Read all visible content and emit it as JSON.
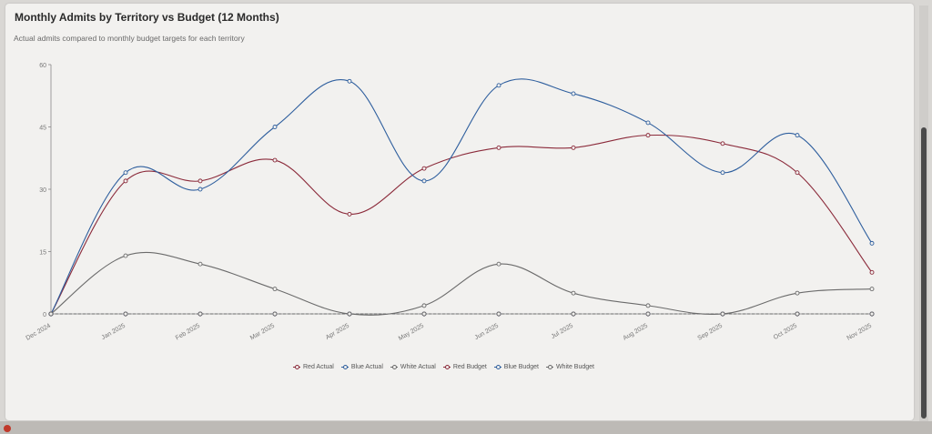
{
  "colors": {
    "red": "#8b2a3a",
    "blue": "#2f5f9e",
    "white": "#6b6b6b",
    "axis": "#888888",
    "grid": "#e4e2df"
  },
  "chart_data": {
    "type": "line",
    "title": "Monthly Admits by Territory vs Budget (12 Months)",
    "subtitle": "Actual admits compared to monthly budget targets for each territory",
    "categories": [
      "Dec 2024",
      "Jan 2025",
      "Feb 2025",
      "Mar 2025",
      "Apr 2025",
      "May 2025",
      "Jun 2025",
      "Jul 2025",
      "Aug 2025",
      "Sep 2025",
      "Oct 2025",
      "Nov 2025"
    ],
    "y_ticks": [
      "0",
      "15",
      "30",
      "45",
      "60"
    ],
    "ylim": [
      0,
      60
    ],
    "grid": false,
    "legend_position": "bottom",
    "series": [
      {
        "name": "Red Actual",
        "color": "#8b2a3a",
        "dashed": false,
        "values": [
          0,
          32,
          32,
          37,
          24,
          35,
          40,
          40,
          43,
          41,
          34,
          10
        ]
      },
      {
        "name": "Blue Actual",
        "color": "#2f5f9e",
        "dashed": false,
        "values": [
          0,
          34,
          30,
          45,
          56,
          32,
          55,
          53,
          46,
          34,
          43,
          17
        ]
      },
      {
        "name": "White Actual",
        "color": "#6b6b6b",
        "dashed": false,
        "values": [
          0,
          14,
          12,
          6,
          0,
          2,
          12,
          5,
          2,
          0,
          5,
          6
        ]
      },
      {
        "name": "Red Budget",
        "color": "#8b2a3a",
        "dashed": true,
        "values": [
          0,
          0,
          0,
          0,
          0,
          0,
          0,
          0,
          0,
          0,
          0,
          0
        ]
      },
      {
        "name": "Blue Budget",
        "color": "#2f5f9e",
        "dashed": true,
        "values": [
          0,
          0,
          0,
          0,
          0,
          0,
          0,
          0,
          0,
          0,
          0,
          0
        ]
      },
      {
        "name": "White Budget",
        "color": "#6b6b6b",
        "dashed": true,
        "values": [
          0,
          0,
          0,
          0,
          0,
          0,
          0,
          0,
          0,
          0,
          0,
          0
        ]
      }
    ]
  }
}
